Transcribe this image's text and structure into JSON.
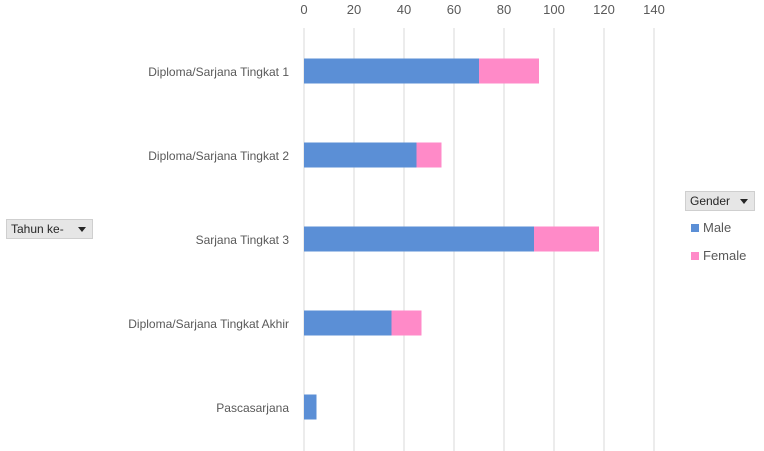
{
  "chart_data": {
    "type": "bar",
    "orientation": "horizontal",
    "stacked": true,
    "categories": [
      "Diploma/Sarjana Tingkat 1",
      "Diploma/Sarjana Tingkat 2",
      "Sarjana Tingkat 3",
      "Diploma/Sarjana Tingkat Akhir",
      "Pascasarjana"
    ],
    "series": [
      {
        "name": "Male",
        "values": [
          70,
          45,
          92,
          35,
          5
        ],
        "color": "#5b8fd6"
      },
      {
        "name": "Female",
        "values": [
          24,
          10,
          26,
          12,
          0
        ],
        "color": "#ff8ac8"
      }
    ],
    "xlim": [
      0,
      140
    ],
    "xticks": [
      "0",
      "20",
      "40",
      "60",
      "80",
      "100",
      "120",
      "140"
    ],
    "axis_position": "top",
    "grid": true,
    "legend_position": "right"
  },
  "row_field": {
    "label": "Tahun ke-",
    "icon": "dropdown-arrow-icon"
  },
  "legend_field": {
    "label": "Gender",
    "icon": "dropdown-arrow-icon"
  }
}
